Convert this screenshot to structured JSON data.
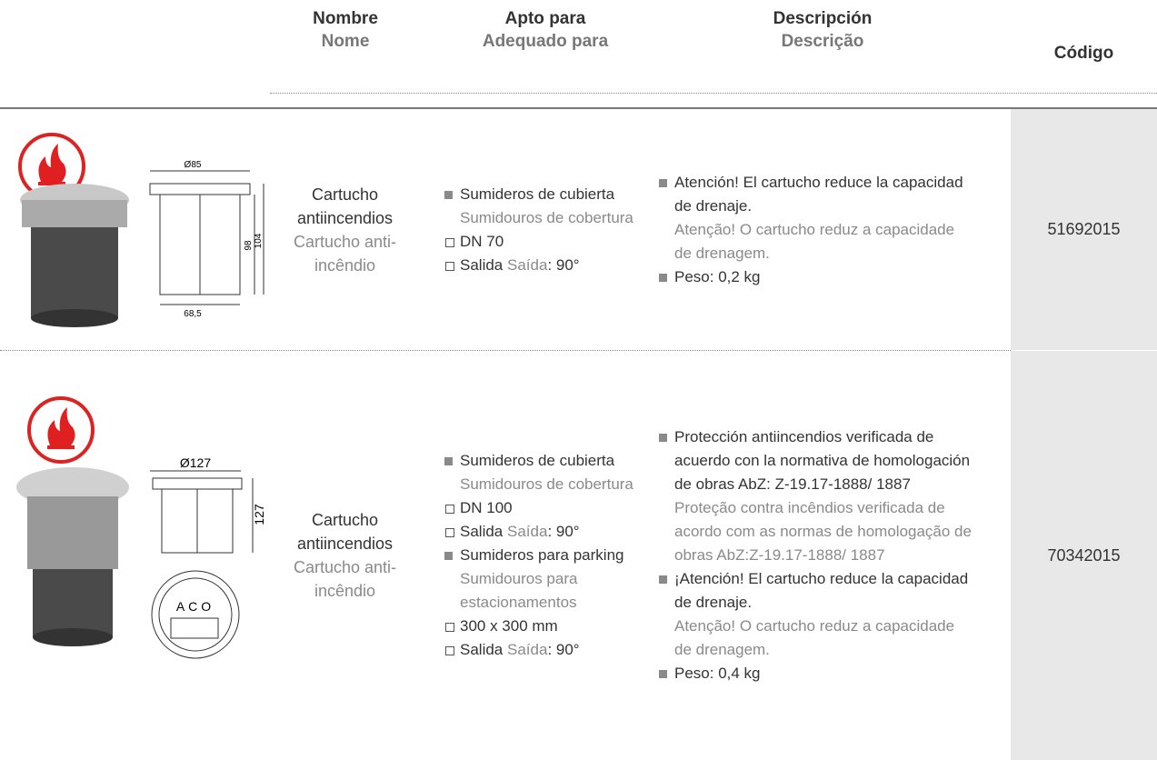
{
  "header": {
    "columns": [
      {
        "es": "Nombre",
        "pt": "Nome"
      },
      {
        "es": "Apto para",
        "pt": "Adequado para"
      },
      {
        "es": "Descripción",
        "pt": "Descrição"
      },
      {
        "label": "Código"
      }
    ]
  },
  "rows": [
    {
      "drawing_labels": [
        "Ø85",
        "98",
        "104",
        "68,5"
      ],
      "name": {
        "es": "Cartucho antiincendios",
        "pt": "Cartucho anti-incêndio"
      },
      "apto": [
        {
          "marker": "bullet",
          "es": "Sumideros de cubierta",
          "pt": "Sumidouros de cobertura"
        },
        {
          "marker": "box",
          "es": "DN 70"
        },
        {
          "marker": "box",
          "es": "Salida",
          "pt": "Saída",
          "rest": ": 90°"
        }
      ],
      "descripcion": [
        {
          "es": "Atención! El cartucho reduce la capacidad de drenaje.",
          "pt": "Atenção! O cartucho reduz a capacidade de drenagem."
        },
        {
          "es": "Peso: 0,2 kg"
        }
      ],
      "codigo": "51692015"
    },
    {
      "drawing_labels": [
        "Ø127",
        "127",
        "ACO"
      ],
      "name": {
        "es": "Cartucho antiincendios",
        "pt": "Cartucho anti-incêndio"
      },
      "apto": [
        {
          "marker": "bullet",
          "es": "Sumideros de cubierta",
          "pt": "Sumidouros de cobertura"
        },
        {
          "marker": "box",
          "es": "DN 100"
        },
        {
          "marker": "box",
          "es": "Salida",
          "pt": "Saída",
          "rest": ": 90°"
        },
        {
          "marker": "bullet",
          "es": "Sumideros para parking",
          "pt": "Sumidouros para estacionamentos"
        },
        {
          "marker": "box",
          "es": "300 x 300 mm"
        },
        {
          "marker": "box",
          "es": "Salida",
          "pt": "Saída",
          "rest": ": 90°"
        }
      ],
      "descripcion": [
        {
          "es": "Protección antiincendios verificada de acuerdo con la normativa de homologación de obras AbZ: Z-19.17-1888/ 1887",
          "pt": "Proteção contra incêndios verificada de acordo com as normas de homologação de obras AbZ:Z-19.17-1888/ 1887"
        },
        {
          "es": "¡Atención! El cartucho reduce la capacidad de drenaje.",
          "pt": "Atenção! O cartucho reduz a capacidade de drenagem."
        },
        {
          "es": "Peso: 0,4 kg"
        }
      ],
      "codigo": "70342015"
    }
  ]
}
